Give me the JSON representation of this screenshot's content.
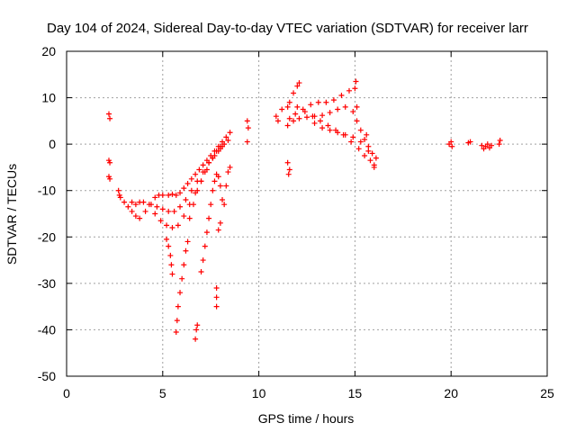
{
  "chart_data": {
    "type": "scatter",
    "title": "Day 104 of 2024, Sidereal Day-to-day VTEC variation (SDTVAR) for receiver larr",
    "xlabel": "GPS time / hours",
    "ylabel": "SDTVAR / TECUs",
    "xlim": [
      0,
      25
    ],
    "ylim": [
      -50,
      20
    ],
    "xticks": [
      0,
      5,
      10,
      15,
      20,
      25
    ],
    "yticks": [
      -50,
      -40,
      -30,
      -20,
      -10,
      0,
      10,
      20
    ],
    "grid": true,
    "marker": "+",
    "colors": {
      "series": "#ff0000",
      "grid": "#a0a0a0",
      "axis": "#000000"
    },
    "series": [
      {
        "name": "SDTVAR",
        "points": [
          [
            2.2,
            6.5
          ],
          [
            2.25,
            5.5
          ],
          [
            2.2,
            -3.5
          ],
          [
            2.25,
            -4.0
          ],
          [
            2.2,
            -7.0
          ],
          [
            2.25,
            -7.5
          ],
          [
            2.7,
            -10.0
          ],
          [
            2.75,
            -11.0
          ],
          [
            2.8,
            -11.5
          ],
          [
            3.0,
            -12.5
          ],
          [
            3.2,
            -13.5
          ],
          [
            3.4,
            -14.5
          ],
          [
            3.6,
            -15.5
          ],
          [
            3.8,
            -16.0
          ],
          [
            3.4,
            -12.5
          ],
          [
            3.6,
            -13.0
          ],
          [
            3.8,
            -12.5
          ],
          [
            4.0,
            -12.5
          ],
          [
            4.1,
            -14.5
          ],
          [
            4.3,
            -13.0
          ],
          [
            4.6,
            -11.5
          ],
          [
            4.8,
            -11.0
          ],
          [
            5.0,
            -11.0
          ],
          [
            5.3,
            -11.0
          ],
          [
            5.5,
            -10.8
          ],
          [
            5.7,
            -11.0
          ],
          [
            5.9,
            -10.5
          ],
          [
            6.1,
            -9.5
          ],
          [
            6.3,
            -8.5
          ],
          [
            6.5,
            -7.5
          ],
          [
            6.7,
            -6.5
          ],
          [
            6.9,
            -5.5
          ],
          [
            7.1,
            -4.5
          ],
          [
            7.3,
            -3.5
          ],
          [
            7.5,
            -2.5
          ],
          [
            7.7,
            -1.5
          ],
          [
            7.9,
            -0.5
          ],
          [
            8.1,
            0.5
          ],
          [
            8.3,
            1.5
          ],
          [
            8.5,
            2.5
          ],
          [
            4.4,
            -13.0
          ],
          [
            4.7,
            -13.5
          ],
          [
            5.0,
            -14.0
          ],
          [
            5.3,
            -14.5
          ],
          [
            5.6,
            -14.5
          ],
          [
            5.9,
            -13.5
          ],
          [
            6.2,
            -12.0
          ],
          [
            6.5,
            -10.0
          ],
          [
            6.8,
            -8.0
          ],
          [
            7.1,
            -6.0
          ],
          [
            7.4,
            -4.0
          ],
          [
            7.7,
            -2.5
          ],
          [
            8.0,
            -1.0
          ],
          [
            8.2,
            0.0
          ],
          [
            8.4,
            0.8
          ],
          [
            4.6,
            -15.0
          ],
          [
            4.9,
            -16.5
          ],
          [
            5.2,
            -17.5
          ],
          [
            5.5,
            -18.0
          ],
          [
            5.8,
            -17.5
          ],
          [
            6.1,
            -15.5
          ],
          [
            6.4,
            -13.0
          ],
          [
            6.7,
            -10.5
          ],
          [
            7.0,
            -8.0
          ],
          [
            7.3,
            -5.5
          ],
          [
            7.6,
            -3.0
          ],
          [
            7.9,
            -1.5
          ],
          [
            8.1,
            -0.5
          ],
          [
            5.2,
            -20.5
          ],
          [
            5.3,
            -22.0
          ],
          [
            5.4,
            -24.0
          ],
          [
            5.45,
            -26.0
          ],
          [
            5.5,
            -28.0
          ],
          [
            5.7,
            -40.5
          ],
          [
            5.75,
            -38.0
          ],
          [
            5.8,
            -35.0
          ],
          [
            5.9,
            -32.0
          ],
          [
            6.0,
            -29.0
          ],
          [
            6.1,
            -26.0
          ],
          [
            6.2,
            -23.0
          ],
          [
            6.3,
            -21.0
          ],
          [
            6.7,
            -42.0
          ],
          [
            6.75,
            -40.0
          ],
          [
            6.8,
            -39.0
          ],
          [
            6.4,
            -16.0
          ],
          [
            6.6,
            -13.0
          ],
          [
            6.8,
            -10.0
          ],
          [
            7.0,
            -8.0
          ],
          [
            7.2,
            -6.0
          ],
          [
            7.4,
            -4.0
          ],
          [
            7.6,
            -3.0
          ],
          [
            7.8,
            -1.5
          ],
          [
            8.0,
            -0.5
          ],
          [
            7.0,
            -27.5
          ],
          [
            7.1,
            -25.0
          ],
          [
            7.2,
            -22.0
          ],
          [
            7.3,
            -19.0
          ],
          [
            7.4,
            -16.0
          ],
          [
            7.5,
            -13.0
          ],
          [
            7.6,
            -10.0
          ],
          [
            7.7,
            -8.0
          ],
          [
            7.8,
            -6.5
          ],
          [
            7.9,
            -7.0
          ],
          [
            8.0,
            -9.0
          ],
          [
            8.1,
            -12.0
          ],
          [
            8.2,
            -13.0
          ],
          [
            8.3,
            -9.0
          ],
          [
            8.4,
            -6.0
          ],
          [
            8.5,
            -5.0
          ],
          [
            7.9,
            -18.5
          ],
          [
            8.0,
            -17.0
          ],
          [
            7.8,
            -31.0
          ],
          [
            7.8,
            -33.0
          ],
          [
            7.8,
            -35.0
          ],
          [
            9.4,
            5.0
          ],
          [
            9.45,
            3.5
          ],
          [
            9.4,
            0.5
          ],
          [
            10.9,
            6.0
          ],
          [
            11.0,
            5.0
          ],
          [
            11.2,
            7.5
          ],
          [
            11.5,
            8.0
          ],
          [
            11.6,
            9.0
          ],
          [
            11.8,
            11.0
          ],
          [
            12.0,
            12.5
          ],
          [
            12.1,
            13.2
          ],
          [
            11.5,
            -4.0
          ],
          [
            11.6,
            -5.5
          ],
          [
            11.55,
            -6.5
          ],
          [
            11.5,
            4.0
          ],
          [
            11.8,
            5.0
          ],
          [
            12.1,
            5.5
          ],
          [
            12.5,
            5.8
          ],
          [
            12.9,
            6.0
          ],
          [
            13.3,
            6.2
          ],
          [
            13.7,
            6.8
          ],
          [
            14.1,
            7.5
          ],
          [
            14.5,
            8.0
          ],
          [
            14.9,
            7.0
          ],
          [
            15.1,
            5.0
          ],
          [
            15.3,
            3.0
          ],
          [
            15.5,
            1.0
          ],
          [
            15.7,
            -0.5
          ],
          [
            15.9,
            -2.0
          ],
          [
            16.1,
            -3.0
          ],
          [
            11.6,
            5.5
          ],
          [
            11.9,
            6.5
          ],
          [
            12.3,
            7.5
          ],
          [
            12.7,
            8.5
          ],
          [
            13.1,
            9.0
          ],
          [
            13.5,
            9.0
          ],
          [
            13.9,
            9.5
          ],
          [
            14.3,
            10.5
          ],
          [
            14.7,
            11.5
          ],
          [
            15.0,
            12.0
          ],
          [
            15.05,
            13.5
          ],
          [
            15.1,
            8.0
          ],
          [
            12.0,
            8.0
          ],
          [
            12.4,
            7.0
          ],
          [
            12.8,
            6.0
          ],
          [
            13.2,
            5.0
          ],
          [
            13.6,
            4.0
          ],
          [
            14.0,
            3.0
          ],
          [
            14.4,
            2.0
          ],
          [
            14.8,
            0.5
          ],
          [
            15.2,
            -1.0
          ],
          [
            15.5,
            -2.5
          ],
          [
            15.8,
            -3.5
          ],
          [
            16.0,
            -4.5
          ],
          [
            12.9,
            4.5
          ],
          [
            13.3,
            3.5
          ],
          [
            13.7,
            3.0
          ],
          [
            14.1,
            2.5
          ],
          [
            14.5,
            2.0
          ],
          [
            14.9,
            1.5
          ],
          [
            15.3,
            0.5
          ],
          [
            15.6,
            2.0
          ],
          [
            15.7,
            -1.5
          ],
          [
            16.0,
            -5.0
          ],
          [
            19.9,
            0.0
          ],
          [
            20.0,
            0.5
          ],
          [
            20.05,
            -0.5
          ],
          [
            20.9,
            0.3
          ],
          [
            21.0,
            0.5
          ],
          [
            21.6,
            -0.3
          ],
          [
            21.7,
            -1.0
          ],
          [
            21.8,
            -0.5
          ],
          [
            21.9,
            0.0
          ],
          [
            22.0,
            -0.8
          ],
          [
            22.1,
            -0.3
          ],
          [
            22.5,
            0.0
          ],
          [
            22.55,
            0.8
          ]
        ]
      }
    ]
  }
}
